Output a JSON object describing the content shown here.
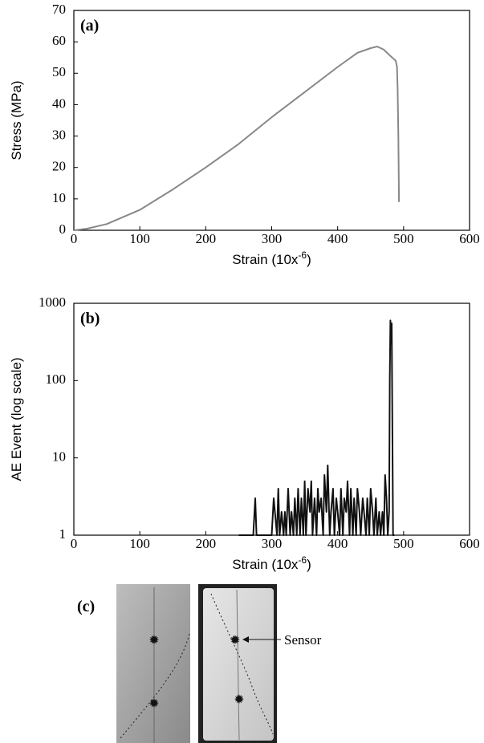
{
  "chart_data": [
    {
      "type": "line",
      "panel_label": "(a)",
      "y_label": "Stress (MPa)",
      "x_label_parts": [
        "Strain (10x",
        "-6",
        ")"
      ],
      "x": [
        0,
        20,
        50,
        100,
        150,
        200,
        250,
        300,
        350,
        400,
        430,
        450,
        460,
        470,
        480,
        488,
        490,
        491,
        492,
        493
      ],
      "series": [
        {
          "color": "#888888",
          "values": [
            0,
            0.5,
            2,
            6.5,
            13,
            20,
            27.5,
            36,
            44,
            52,
            56.5,
            58,
            58.5,
            57.5,
            55.5,
            54,
            52,
            45,
            30,
            9
          ]
        }
      ],
      "xlim": [
        0,
        600
      ],
      "xticks": [
        0,
        100,
        200,
        300,
        400,
        500,
        600
      ],
      "ylim": [
        0,
        70
      ],
      "yticks": [
        0,
        10,
        20,
        30,
        40,
        50,
        60,
        70
      ],
      "log_y": false
    },
    {
      "type": "line",
      "panel_label": "(b)",
      "y_label": "AE Event (log scale)",
      "x_label_parts": [
        "Strain (10x",
        "-6",
        ")"
      ],
      "x": [
        250,
        272,
        275,
        277,
        280,
        290,
        300,
        303,
        308,
        310,
        312,
        315,
        318,
        320,
        322,
        325,
        328,
        330,
        333,
        335,
        338,
        340,
        343,
        345,
        348,
        350,
        352,
        355,
        358,
        360,
        362,
        365,
        368,
        370,
        372,
        375,
        378,
        380,
        383,
        385,
        388,
        390,
        393,
        395,
        398,
        400,
        403,
        405,
        408,
        410,
        413,
        415,
        418,
        420,
        423,
        425,
        428,
        430,
        433,
        435,
        438,
        440,
        443,
        445,
        448,
        450,
        453,
        455,
        458,
        460,
        463,
        465,
        468,
        470,
        472,
        474,
        476,
        478,
        479,
        480,
        481,
        482,
        483,
        484,
        486
      ],
      "series": [
        {
          "color": "#111111",
          "values": [
            1,
            1,
            3,
            1,
            1,
            1,
            1,
            3,
            1,
            4,
            1,
            2,
            1,
            2,
            1,
            4,
            1,
            2,
            1,
            3,
            1,
            4,
            1,
            3,
            1,
            5,
            1,
            4,
            2,
            5,
            1,
            3,
            1,
            4,
            2,
            3,
            1,
            6,
            2,
            8,
            1,
            2,
            4,
            1,
            3,
            2,
            1,
            4,
            1,
            3,
            2,
            5,
            1,
            4,
            1,
            3,
            1,
            4,
            2,
            1,
            3,
            2,
            1,
            3,
            1,
            4,
            2,
            1,
            3,
            1,
            2,
            1,
            2,
            1,
            6,
            3,
            1,
            2,
            100,
            600,
            300,
            550,
            20,
            1,
            1
          ]
        }
      ],
      "xlim": [
        0,
        600
      ],
      "xticks": [
        0,
        100,
        200,
        300,
        400,
        500,
        600
      ],
      "ylim": [
        1,
        1000
      ],
      "yticks": [
        1,
        10,
        100,
        1000
      ],
      "log_y": true
    }
  ],
  "photo_panel": {
    "label": "(c)",
    "annotation": "Sensor"
  }
}
